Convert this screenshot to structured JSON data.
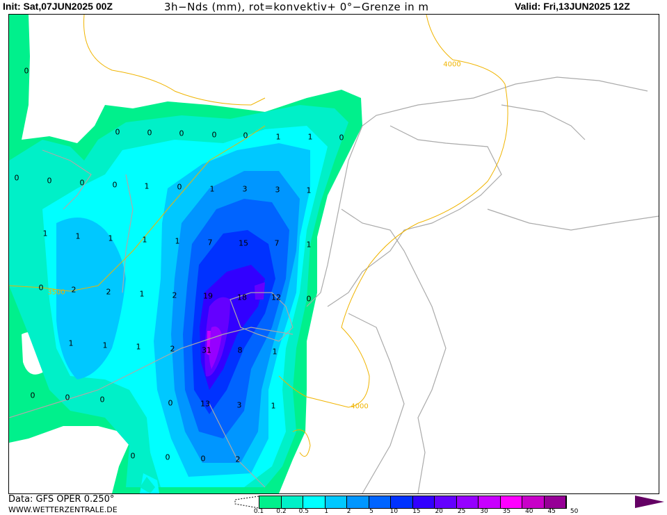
{
  "header": {
    "init": "Init: Sat,07JUN2025 00Z",
    "title": "3h−Nds (mm), rot=konvektiv+ 0°−Grenze in m",
    "valid": "Valid: Fri,13JUN2025 12Z"
  },
  "footer": {
    "source": "Data: GFS OPER 0.250°",
    "site": "WWW.WETTERZENTRALE.DE"
  },
  "legend": {
    "ticks": [
      "0.1",
      "0.2",
      "0.5",
      "1",
      "2",
      "5",
      "10",
      "15",
      "20",
      "25",
      "30",
      "35",
      "40",
      "45",
      "50"
    ],
    "colors": [
      "#00f08c",
      "#00f0c8",
      "#00ffff",
      "#00c8ff",
      "#0096ff",
      "#0064ff",
      "#0032ff",
      "#3200ff",
      "#6400ff",
      "#9600ff",
      "#c800ff",
      "#ff00ff",
      "#c800c8",
      "#960096"
    ],
    "overflow_color": "#640064"
  },
  "isolines": [
    "4000",
    "4000",
    "3500"
  ],
  "labels": [
    "0",
    "0",
    "0",
    "0",
    "0",
    "0",
    "1",
    "1",
    "0",
    "0",
    "0",
    "0",
    "0",
    "1",
    "0",
    "1",
    "3",
    "3",
    "1",
    "1",
    "1",
    "1",
    "1",
    "1",
    "7",
    "15",
    "7",
    "1",
    "0",
    "2",
    "2",
    "1",
    "2",
    "19",
    "18",
    "12",
    "0",
    "1",
    "1",
    "1",
    "2",
    "31",
    "8",
    "1",
    "0",
    "0",
    "0",
    "0",
    "13",
    "3",
    "1",
    "0",
    "0",
    "0",
    "2"
  ]
}
